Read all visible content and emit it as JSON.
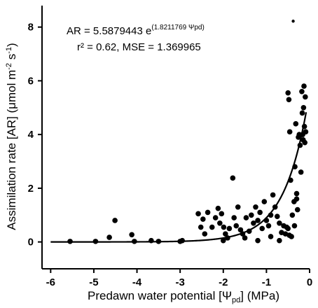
{
  "chart_data": {
    "type": "scatter",
    "xlabel": {
      "prefix": "Predawn water potential [Ψ",
      "sub": "pd",
      "suffix": "] (MPa)"
    },
    "ylabel": {
      "prefix": "Assimilation rate [AR] (μmol m",
      "sup1": "-2",
      "mid": " s",
      "sup2": "-1",
      "suffix": ")"
    },
    "xlim": [
      -6.2,
      0
    ],
    "ylim": [
      -1,
      8.8
    ],
    "x_ticks": [
      -6,
      -5,
      -4,
      -3,
      -2,
      -1,
      0
    ],
    "y_ticks": [
      0,
      2,
      4,
      6,
      8
    ],
    "x_tick_labels": [
      "-6",
      "-5",
      "-4",
      "-3",
      "-2",
      "-1",
      "0"
    ],
    "y_tick_labels": [
      "0",
      "2",
      "4",
      "6",
      "8"
    ],
    "grid": false,
    "annotation": {
      "line1_prefix": "AR = 5.5879443 e",
      "line1_exponent": "(1.8211769 Ψpd)",
      "line2": "r² = 0.62, MSE = 1.369965"
    },
    "fit": {
      "type": "exponential",
      "a": 5.5879443,
      "b": 1.8211769,
      "x_range": [
        -6,
        -0.08
      ]
    },
    "points": [
      [
        -5.55,
        0.02
      ],
      [
        -4.96,
        0.02
      ],
      [
        -4.64,
        0.17
      ],
      [
        -4.51,
        0.8
      ],
      [
        -4.12,
        0.27
      ],
      [
        -4.06,
        0.02
      ],
      [
        -3.67,
        0.05
      ],
      [
        -3.5,
        0.02
      ],
      [
        -3.0,
        0.02
      ],
      [
        -2.95,
        0.05
      ],
      [
        -2.58,
        1.05
      ],
      [
        -2.52,
        0.55
      ],
      [
        -2.47,
        0.85
      ],
      [
        -2.43,
        0.3
      ],
      [
        -2.36,
        1.1
      ],
      [
        -2.26,
        0.55
      ],
      [
        -2.18,
        0.9
      ],
      [
        -2.12,
        1.25
      ],
      [
        -2.08,
        0.7
      ],
      [
        -2.04,
        1.05
      ],
      [
        -1.99,
        0.55
      ],
      [
        -1.95,
        0.3
      ],
      [
        -1.9,
        0.15
      ],
      [
        -1.86,
        0.5
      ],
      [
        -1.78,
        2.38
      ],
      [
        -1.75,
        0.9
      ],
      [
        -1.7,
        0.6
      ],
      [
        -1.66,
        1.3
      ],
      [
        -1.6,
        0.45
      ],
      [
        -1.55,
        0.3
      ],
      [
        -1.5,
        0.15
      ],
      [
        -1.47,
        0.9
      ],
      [
        -1.4,
        0.4
      ],
      [
        -1.35,
        1.0
      ],
      [
        -1.3,
        0.7
      ],
      [
        -1.25,
        1.3
      ],
      [
        -1.2,
        0.8
      ],
      [
        -1.15,
        1.1
      ],
      [
        -1.1,
        0.5
      ],
      [
        -1.05,
        1.5
      ],
      [
        -1.0,
        0.8
      ],
      [
        -0.95,
        0.6
      ],
      [
        -0.9,
        1.0
      ],
      [
        -0.85,
        1.75
      ],
      [
        -0.8,
        1.3
      ],
      [
        -0.75,
        0.95
      ],
      [
        -0.7,
        0.7
      ],
      [
        -0.65,
        0.35
      ],
      [
        -0.6,
        0.6
      ],
      [
        -0.56,
        0.3
      ],
      [
        -0.53,
        0.55
      ],
      [
        -0.5,
        5.55
      ],
      [
        -0.48,
        5.3
      ],
      [
        -0.46,
        4.1
      ],
      [
        -0.44,
        2.3
      ],
      [
        -0.42,
        0.2
      ],
      [
        -0.4,
        1.0
      ],
      [
        -0.38,
        8.22
      ],
      [
        -0.36,
        1.5
      ],
      [
        -0.34,
        2.8
      ],
      [
        -0.32,
        4.4
      ],
      [
        -0.3,
        1.8
      ],
      [
        -0.28,
        1.2
      ],
      [
        -0.26,
        3.9
      ],
      [
        -0.24,
        4.0
      ],
      [
        -0.22,
        3.6
      ],
      [
        -0.2,
        2.6
      ],
      [
        -0.18,
        5.6
      ],
      [
        -0.17,
        4.8
      ],
      [
        -0.16,
        4.0
      ],
      [
        -0.15,
        3.8
      ],
      [
        -0.14,
        5.0
      ],
      [
        -0.13,
        5.8
      ],
      [
        -0.12,
        4.3
      ],
      [
        -0.11,
        3.7
      ],
      [
        -0.1,
        5.4
      ],
      [
        -0.09,
        4.1
      ],
      [
        -0.5,
        0.5
      ],
      [
        -0.47,
        0.25
      ],
      [
        -0.9,
        0.2
      ],
      [
        -2.0,
        0.05
      ],
      [
        -1.2,
        0.05
      ],
      [
        -0.7,
        0.05
      ],
      [
        -0.35,
        0.6
      ],
      [
        -0.3,
        1.6
      ]
    ]
  }
}
